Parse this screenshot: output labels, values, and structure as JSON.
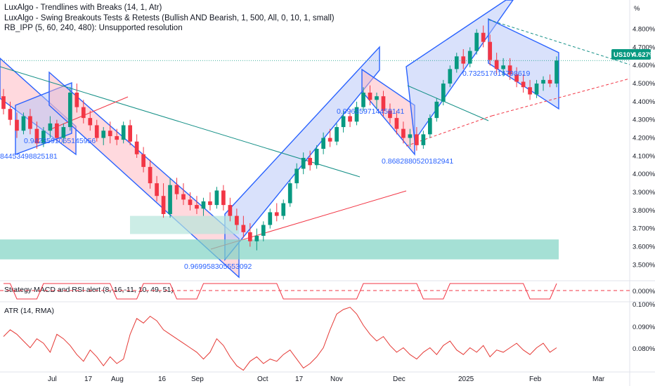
{
  "indicators": [
    "LuxAlgo - Trendlines with Breaks (14, 1, Atr)",
    "LuxAlgo - Swing Breakouts Tests & Retests (Bullish AND Bearish, 1, 500, All, 0, 10, 1, small)",
    "RB_IPP (5, 60, 240, 480): Unsupported resolution"
  ],
  "price_axis": {
    "unit_label": "%",
    "ticks": [
      "4.800%",
      "4.700%",
      "4.600%",
      "4.500%",
      "4.400%",
      "4.300%",
      "4.200%",
      "4.100%",
      "4.000%",
      "3.900%",
      "3.800%",
      "3.700%",
      "3.600%",
      "3.500%"
    ]
  },
  "symbol_tag": {
    "symbol": "US10Y",
    "price": "4.627%"
  },
  "strategy_pane": {
    "label": "Strategy MACD and RSI alert (8,-16,-11, 10, 49, 51)",
    "tick": "0.000%"
  },
  "atr_pane": {
    "label": "ATR (14, RMA)",
    "ticks": [
      "0.100%",
      "0.090%",
      "0.080%"
    ]
  },
  "time_axis": [
    "Jul",
    "17",
    "Aug",
    "16",
    "Sep",
    "Oct",
    "17",
    "Nov",
    "Dec",
    "2025",
    "Feb",
    "Mar"
  ],
  "annotations": [
    "0.9423591065145956",
    "84453498825181",
    "0.969958305553092",
    "0.996359714458141",
    "0.8682880520182941",
    "0.732517614798619"
  ],
  "colors": {
    "up": "#089981",
    "down": "#f23645",
    "channel": "#2962ff",
    "atr": "#e53935",
    "tag": "#089981"
  },
  "chart_data": {
    "type": "candlestick",
    "y_unit": "%",
    "ylim": [
      3.42,
      4.93
    ],
    "last_price": 4.627,
    "candles": [
      [
        4.43,
        4.47,
        4.33,
        4.36
      ],
      [
        4.36,
        4.4,
        4.27,
        4.3
      ],
      [
        4.3,
        4.34,
        4.2,
        4.24
      ],
      [
        4.24,
        4.34,
        4.22,
        4.32
      ],
      [
        4.32,
        4.36,
        4.22,
        4.25
      ],
      [
        4.25,
        4.29,
        4.14,
        4.17
      ],
      [
        4.17,
        4.26,
        4.15,
        4.24
      ],
      [
        4.24,
        4.32,
        4.2,
        4.28
      ],
      [
        4.28,
        4.3,
        4.18,
        4.2
      ],
      [
        4.2,
        4.28,
        4.17,
        4.26
      ],
      [
        4.26,
        4.48,
        4.24,
        4.45
      ],
      [
        4.45,
        4.5,
        4.34,
        4.37
      ],
      [
        4.37,
        4.41,
        4.28,
        4.31
      ],
      [
        4.31,
        4.35,
        4.24,
        4.27
      ],
      [
        4.27,
        4.3,
        4.18,
        4.2
      ],
      [
        4.2,
        4.26,
        4.16,
        4.24
      ],
      [
        4.24,
        4.29,
        4.17,
        4.21
      ],
      [
        4.21,
        4.25,
        4.16,
        4.19
      ],
      [
        4.19,
        4.29,
        4.17,
        4.27
      ],
      [
        4.27,
        4.3,
        4.16,
        4.18
      ],
      [
        4.18,
        4.22,
        4.09,
        4.11
      ],
      [
        4.11,
        4.15,
        4.01,
        4.04
      ],
      [
        4.04,
        4.08,
        3.92,
        3.95
      ],
      [
        3.95,
        3.99,
        3.85,
        3.88
      ],
      [
        3.88,
        3.95,
        3.76,
        3.78
      ],
      [
        3.78,
        3.98,
        3.76,
        3.94
      ],
      [
        3.94,
        3.98,
        3.86,
        3.89
      ],
      [
        3.89,
        3.95,
        3.83,
        3.86
      ],
      [
        3.86,
        3.9,
        3.8,
        3.83
      ],
      [
        3.83,
        3.88,
        3.78,
        3.81
      ],
      [
        3.81,
        3.87,
        3.77,
        3.85
      ],
      [
        3.85,
        3.9,
        3.8,
        3.83
      ],
      [
        3.83,
        3.93,
        3.81,
        3.91
      ],
      [
        3.91,
        3.94,
        3.8,
        3.83
      ],
      [
        3.83,
        3.87,
        3.74,
        3.77
      ],
      [
        3.77,
        3.81,
        3.69,
        3.72
      ],
      [
        3.72,
        3.77,
        3.65,
        3.68
      ],
      [
        3.68,
        3.73,
        3.6,
        3.63
      ],
      [
        3.63,
        3.7,
        3.58,
        3.66
      ],
      [
        3.66,
        3.74,
        3.63,
        3.72
      ],
      [
        3.72,
        3.81,
        3.7,
        3.79
      ],
      [
        3.79,
        3.84,
        3.74,
        3.77
      ],
      [
        3.77,
        3.86,
        3.75,
        3.84
      ],
      [
        3.84,
        3.97,
        3.82,
        3.95
      ],
      [
        3.95,
        4.06,
        3.92,
        4.03
      ],
      [
        4.03,
        4.12,
        4.0,
        4.09
      ],
      [
        4.09,
        4.13,
        4.02,
        4.05
      ],
      [
        4.05,
        4.16,
        4.03,
        4.14
      ],
      [
        4.14,
        4.23,
        4.11,
        4.2
      ],
      [
        4.2,
        4.25,
        4.15,
        4.18
      ],
      [
        4.18,
        4.28,
        4.16,
        4.26
      ],
      [
        4.26,
        4.35,
        4.23,
        4.32
      ],
      [
        4.32,
        4.36,
        4.26,
        4.29
      ],
      [
        4.29,
        4.4,
        4.27,
        4.37
      ],
      [
        4.37,
        4.48,
        4.35,
        4.45
      ],
      [
        4.45,
        4.49,
        4.38,
        4.41
      ],
      [
        4.41,
        4.45,
        4.36,
        4.43
      ],
      [
        4.43,
        4.46,
        4.32,
        4.35
      ],
      [
        4.35,
        4.39,
        4.28,
        4.31
      ],
      [
        4.31,
        4.35,
        4.22,
        4.25
      ],
      [
        4.25,
        4.29,
        4.17,
        4.2
      ],
      [
        4.2,
        4.25,
        4.15,
        4.22
      ],
      [
        4.22,
        4.26,
        4.13,
        4.16
      ],
      [
        4.16,
        4.24,
        4.14,
        4.22
      ],
      [
        4.22,
        4.33,
        4.2,
        4.31
      ],
      [
        4.31,
        4.42,
        4.29,
        4.4
      ],
      [
        4.4,
        4.52,
        4.38,
        4.5
      ],
      [
        4.5,
        4.6,
        4.48,
        4.58
      ],
      [
        4.58,
        4.67,
        4.56,
        4.65
      ],
      [
        4.65,
        4.69,
        4.58,
        4.61
      ],
      [
        4.61,
        4.7,
        4.59,
        4.68
      ],
      [
        4.68,
        4.8,
        4.66,
        4.78
      ],
      [
        4.78,
        4.82,
        4.7,
        4.73
      ],
      [
        4.73,
        4.77,
        4.6,
        4.63
      ],
      [
        4.63,
        4.67,
        4.55,
        4.58
      ],
      [
        4.58,
        4.64,
        4.54,
        4.6
      ],
      [
        4.6,
        4.64,
        4.52,
        4.55
      ],
      [
        4.55,
        4.59,
        4.48,
        4.51
      ],
      [
        4.51,
        4.55,
        4.45,
        4.48
      ],
      [
        4.48,
        4.52,
        4.41,
        4.44
      ],
      [
        4.44,
        4.52,
        4.42,
        4.5
      ],
      [
        4.5,
        4.54,
        4.46,
        4.52
      ],
      [
        4.52,
        4.55,
        4.48,
        4.5
      ],
      [
        4.5,
        4.65,
        4.48,
        4.627
      ]
    ],
    "shaded_zones": [
      {
        "name": "",
        "y_range": [
          3.53,
          3.64
        ],
        "color": "#7fd3c3"
      },
      {
        "name": "",
        "y_range": [
          3.67,
          3.77
        ],
        "color": "#b7e6dc"
      }
    ],
    "strategy_signal_range": [
      0,
      1
    ],
    "atr_values": [
      0.087,
      0.09,
      0.088,
      0.085,
      0.082,
      0.086,
      0.084,
      0.08,
      0.088,
      0.086,
      0.083,
      0.079,
      0.076,
      0.081,
      0.078,
      0.074,
      0.078,
      0.075,
      0.077,
      0.088,
      0.095,
      0.093,
      0.096,
      0.094,
      0.09,
      0.088,
      0.086,
      0.084,
      0.082,
      0.08,
      0.077,
      0.08,
      0.086,
      0.083,
      0.078,
      0.074,
      0.072,
      0.076,
      0.078,
      0.075,
      0.077,
      0.076,
      0.079,
      0.081,
      0.077,
      0.073,
      0.075,
      0.078,
      0.082,
      0.09,
      0.097,
      0.099,
      0.1,
      0.097,
      0.092,
      0.088,
      0.085,
      0.087,
      0.083,
      0.08,
      0.082,
      0.079,
      0.077,
      0.08,
      0.082,
      0.079,
      0.083,
      0.085,
      0.081,
      0.079,
      0.082,
      0.08,
      0.083,
      0.078,
      0.081,
      0.08,
      0.082,
      0.084,
      0.081,
      0.079,
      0.082,
      0.084,
      0.08,
      0.082
    ],
    "atr_ylim": [
      0.0725,
      0.1015
    ]
  }
}
